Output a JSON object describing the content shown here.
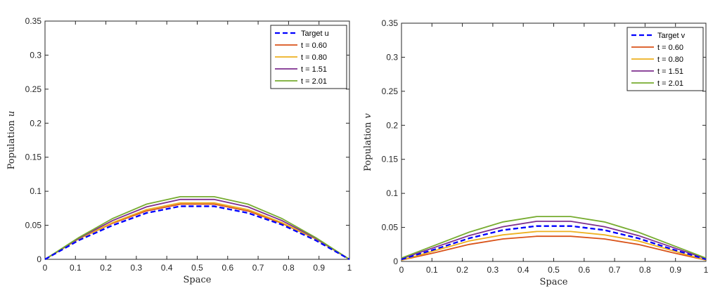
{
  "chart_data": [
    {
      "type": "line",
      "xlabel": "Space",
      "ylabel_text": "Population",
      "ylabel_symbol": "u",
      "xlim": [
        0,
        1
      ],
      "ylim": [
        0,
        0.35
      ],
      "xticks": [
        "0",
        "0.1",
        "0.2",
        "0.3",
        "0.4",
        "0.5",
        "0.6",
        "0.7",
        "0.8",
        "0.9",
        "1"
      ],
      "yticks": [
        "0",
        "0.05",
        "0.1",
        "0.15",
        "0.2",
        "0.25",
        "0.3",
        "0.35"
      ],
      "legend_position": "top-right",
      "x": [
        0,
        0.1111,
        0.2222,
        0.3333,
        0.4444,
        0.5556,
        0.6667,
        0.7778,
        0.8889,
        1
      ],
      "series": [
        {
          "name": "Target u",
          "color": "#0000ff",
          "dashed": true,
          "values": [
            0,
            0.028,
            0.05,
            0.068,
            0.078,
            0.078,
            0.068,
            0.051,
            0.028,
            0
          ]
        },
        {
          "name": "t = 0.60",
          "color": "#d95319",
          "dashed": false,
          "values": [
            0,
            0.03,
            0.053,
            0.071,
            0.081,
            0.081,
            0.071,
            0.053,
            0.03,
            0
          ]
        },
        {
          "name": "t = 0.80",
          "color": "#edb120",
          "dashed": false,
          "values": [
            0,
            0.03,
            0.054,
            0.073,
            0.083,
            0.083,
            0.073,
            0.054,
            0.03,
            0
          ]
        },
        {
          "name": "t = 1.51",
          "color": "#7e2f8e",
          "dashed": false,
          "values": [
            0,
            0.031,
            0.057,
            0.077,
            0.088,
            0.088,
            0.077,
            0.057,
            0.031,
            0
          ]
        },
        {
          "name": "t = 2.01",
          "color": "#77ac30",
          "dashed": false,
          "values": [
            0,
            0.032,
            0.06,
            0.081,
            0.092,
            0.092,
            0.081,
            0.06,
            0.032,
            0
          ]
        }
      ]
    },
    {
      "type": "line",
      "xlabel": "Space",
      "ylabel_text": "Population",
      "ylabel_symbol": "v",
      "xlim": [
        0,
        1
      ],
      "ylim": [
        0,
        0.35
      ],
      "xticks": [
        "0",
        "0.1",
        "0.2",
        "0.3",
        "0.4",
        "0.5",
        "0.6",
        "0.7",
        "0.8",
        "0.9",
        "1"
      ],
      "yticks": [
        "0",
        "0.05",
        "0.1",
        "0.15",
        "0.2",
        "0.25",
        "0.3",
        "0.35"
      ],
      "legend_position": "top-right",
      "x": [
        0,
        0.1111,
        0.2222,
        0.3333,
        0.4444,
        0.5556,
        0.6667,
        0.7778,
        0.8889,
        1
      ],
      "series": [
        {
          "name": "Target v",
          "color": "#0000ff",
          "dashed": true,
          "values": [
            0.003,
            0.018,
            0.034,
            0.046,
            0.052,
            0.052,
            0.046,
            0.034,
            0.018,
            0.003
          ]
        },
        {
          "name": "t = 0.60",
          "color": "#d95319",
          "dashed": false,
          "values": [
            0.002,
            0.013,
            0.025,
            0.033,
            0.037,
            0.037,
            0.033,
            0.025,
            0.013,
            0.002
          ]
        },
        {
          "name": "t = 0.80",
          "color": "#edb120",
          "dashed": false,
          "values": [
            0.002,
            0.016,
            0.03,
            0.039,
            0.044,
            0.044,
            0.039,
            0.03,
            0.016,
            0.002
          ]
        },
        {
          "name": "t = 1.51",
          "color": "#7e2f8e",
          "dashed": false,
          "values": [
            0.004,
            0.021,
            0.038,
            0.051,
            0.059,
            0.059,
            0.051,
            0.038,
            0.021,
            0.004
          ]
        },
        {
          "name": "t = 2.01",
          "color": "#77ac30",
          "dashed": false,
          "values": [
            0.005,
            0.024,
            0.043,
            0.058,
            0.066,
            0.066,
            0.058,
            0.043,
            0.024,
            0.005
          ]
        }
      ]
    }
  ]
}
